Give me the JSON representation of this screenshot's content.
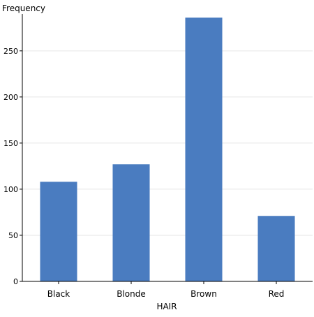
{
  "chart_data": {
    "type": "bar",
    "categories": [
      "Black",
      "Blonde",
      "Brown",
      "Red"
    ],
    "values": [
      108,
      127,
      286,
      71
    ],
    "title": "",
    "xlabel": "HAIR",
    "ylabel": "Frequency",
    "ylim": [
      0,
      290
    ],
    "yticks": [
      0,
      50,
      100,
      150,
      200,
      250
    ],
    "grid": true,
    "bar_color": "#4a7cc0",
    "grid_color": "#e6e6e6",
    "axis_color": "#000000"
  }
}
